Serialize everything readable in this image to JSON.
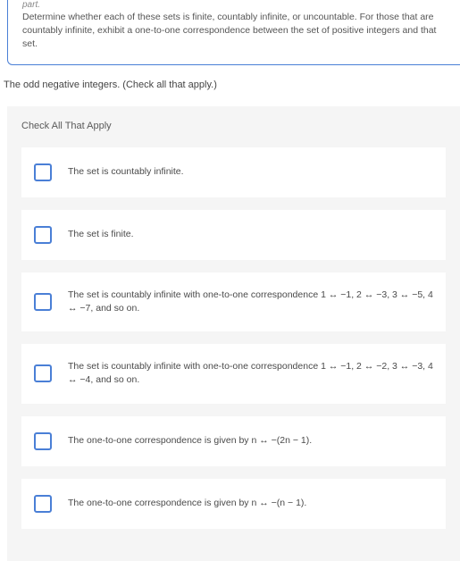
{
  "top": {
    "part_label": "part.",
    "prompt": "Determine whether each of these sets is finite, countably infinite, or uncountable. For those that are countably infinite, exhibit a one-to-one correspondence between the set of positive integers and that set."
  },
  "question": "The odd negative integers. (Check all that apply.)",
  "heading": "Check All That Apply",
  "options": [
    {
      "text": "The set is countably infinite."
    },
    {
      "text": "The set is finite."
    },
    {
      "text": "The set is countably infinite with one-to-one correspondence 1 ↔ −1, 2 ↔ −3, 3 ↔ −5, 4 ↔ −7, and so on."
    },
    {
      "text": "The set is countably infinite with one-to-one correspondence 1 ↔ −1, 2 ↔ −2, 3 ↔ −3, 4 ↔ −4, and so on."
    },
    {
      "text": "The one-to-one correspondence is given by n ↔ −(2n − 1)."
    },
    {
      "text": "The one-to-one correspondence is given by n ↔ −(n − 1)."
    }
  ],
  "colors": {
    "accent": "#4a7fd6",
    "card_bg": "#f5f5f5",
    "option_bg": "#ffffff",
    "text": "#4a4a4a"
  }
}
